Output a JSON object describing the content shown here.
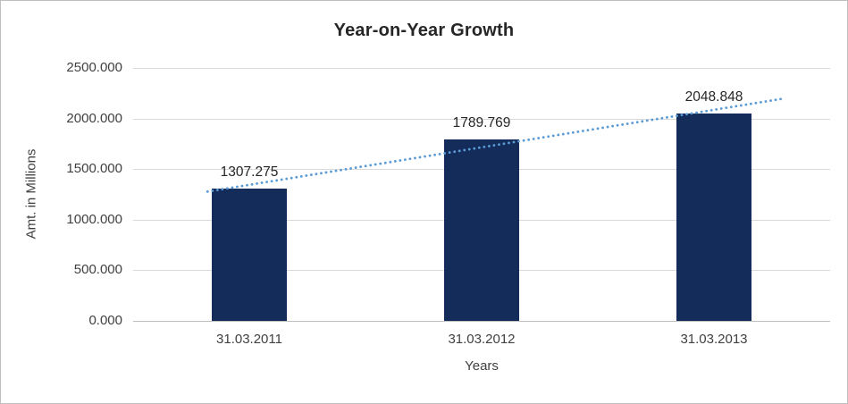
{
  "chart_data": {
    "type": "bar",
    "title": "Year-on-Year Growth",
    "xlabel": "Years",
    "ylabel": "Amt. in Millions",
    "categories": [
      "31.03.2011",
      "31.03.2012",
      "31.03.2013"
    ],
    "values": [
      1307.275,
      1789.769,
      2048.848
    ],
    "data_labels": [
      "1307.275",
      "1789.769",
      "2048.848"
    ],
    "ylim": [
      0,
      2500
    ],
    "ytick_step": 500,
    "ytick_labels": [
      "0.000",
      "500.000",
      "1000.000",
      "1500.000",
      "2000.000",
      "2500.000"
    ],
    "grid": true,
    "legend": "none",
    "trendline": {
      "type": "linear",
      "style": "dotted"
    },
    "colors": {
      "bar": "#142C5A",
      "trendline": "#5B9BD5",
      "gridline": "#D9D9D9",
      "axis": "#BFBFBF",
      "text": "#404040",
      "title": "#262626"
    }
  }
}
